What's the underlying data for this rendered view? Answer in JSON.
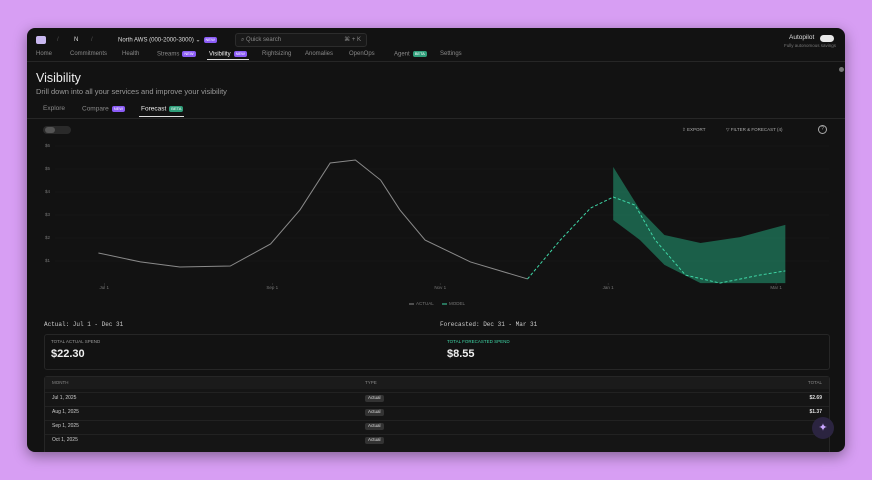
{
  "nav": {
    "org": "N",
    "account": "North AWS (000-2000-3000)",
    "account_badge": "NEW",
    "search": "Quick search",
    "shortcut": "⌘ + K",
    "autopilot": "Autopilot",
    "autopilot_sub": "Fully autonomous savings",
    "tabs": [
      {
        "label": "Home"
      },
      {
        "label": "Commitments"
      },
      {
        "label": "Health"
      },
      {
        "label": "Streams",
        "badge": "NEW"
      },
      {
        "label": "Visibility",
        "badge": "NEW"
      },
      {
        "label": "Rightsizing"
      },
      {
        "label": "Anomalies"
      },
      {
        "label": "OpenOps"
      },
      {
        "label": "Agent",
        "badge": "BETA"
      },
      {
        "label": "Settings"
      }
    ]
  },
  "header": {
    "title": "Visibility",
    "subtitle": "Drill down into all your services and improve your visibility"
  },
  "subtabs": [
    {
      "label": "Explore"
    },
    {
      "label": "Compare",
      "badge": "NEW"
    },
    {
      "label": "Forecast",
      "badge": "BETA"
    }
  ],
  "actions": {
    "export": "EXPORT",
    "filter": "FILTER & FORECAST (4)"
  },
  "chart_data": {
    "type": "line",
    "xlim": [
      -0.73,
      8.63
    ],
    "xticks": [
      {
        "value": 0,
        "label": "Jul 1"
      },
      {
        "value": 2,
        "label": "Sep 1"
      },
      {
        "value": 4,
        "label": "Nov 1"
      },
      {
        "value": 6,
        "label": "Jan 1"
      },
      {
        "value": 8,
        "label": "Mar 1"
      }
    ],
    "ylim": [
      0,
      6
    ],
    "yticks": [
      {
        "value": 1,
        "label": "$1"
      },
      {
        "value": 2,
        "label": "$2"
      },
      {
        "value": 3,
        "label": "$3"
      },
      {
        "value": 4,
        "label": "$4"
      },
      {
        "value": 5,
        "label": "$5"
      },
      {
        "value": 6,
        "label": "$6"
      }
    ],
    "series": [
      {
        "name": "ACTUAL",
        "color": "#8a8a8a",
        "dashed": false,
        "x": [
          -0.07,
          0.43,
          0.9,
          1.5,
          1.98,
          2.33,
          2.69,
          2.99,
          3.29,
          3.52,
          3.82,
          4.36,
          5.04
        ],
        "values": [
          1.35,
          0.96,
          0.74,
          0.78,
          1.74,
          3.22,
          5.26,
          5.39,
          4.52,
          3.22,
          1.91,
          0.96,
          0.22
        ]
      },
      {
        "name": "MODEL",
        "color": "#3fd6a6",
        "dashed": true,
        "x": [
          5.04,
          5.43,
          5.79,
          6.06,
          6.32,
          6.56,
          6.92,
          7.33,
          7.81,
          8.11
        ],
        "values": [
          0.22,
          1.91,
          3.3,
          3.78,
          3.43,
          1.91,
          0.39,
          0.04,
          0.39,
          0.57
        ]
      }
    ],
    "band": {
      "color": "#1f7a5c",
      "x": [
        6.06,
        6.38,
        6.67,
        7.1,
        7.57,
        8.11
      ],
      "upper": [
        5.09,
        3.22,
        2.13,
        1.78,
        2.04,
        2.57
      ],
      "lower": [
        2.78,
        1.91,
        0.83,
        0.04,
        0.04,
        0.04
      ]
    }
  },
  "summary": {
    "actual_range": "Actual: Jul 1 - Dec 31",
    "forecast_range": "Forecasted: Dec 31 - Mar 31",
    "actual_label": "TOTAL ACTUAL SPEND",
    "actual_value": "$22.30",
    "forecast_label": "TOTAL FORECASTED SPEND",
    "forecast_value": "$8.55"
  },
  "table": {
    "headers": [
      "MONTH",
      "TYPE",
      "TOTAL"
    ],
    "rows": [
      [
        "Jul 1, 2025",
        "Actual",
        "$2.69"
      ],
      [
        "Aug 1, 2025",
        "Actual",
        "$1.37"
      ],
      [
        "Sep 1, 2025",
        "Actual"
      ],
      [
        "Oct 1, 2025",
        "Actual"
      ]
    ]
  }
}
